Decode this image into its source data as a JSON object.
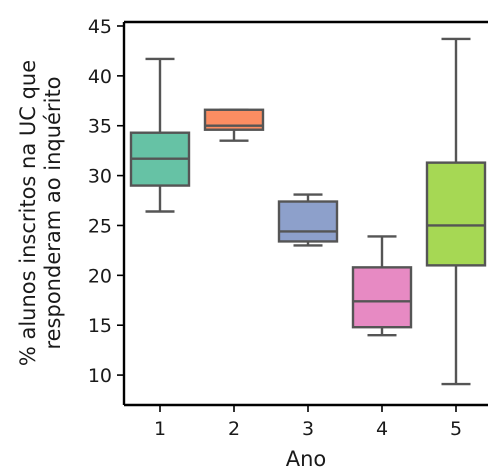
{
  "chart_data": {
    "type": "box",
    "title": "",
    "xlabel": "Ano",
    "ylabel_lines": [
      "% alunos inscritos na UC que",
      "responderam ao inquérito"
    ],
    "ylim": [
      7,
      45.4
    ],
    "yticks": [
      10,
      15,
      20,
      25,
      30,
      35,
      40,
      45
    ],
    "categories": [
      "1",
      "2",
      "3",
      "4",
      "5"
    ],
    "boxes": [
      {
        "category": "1",
        "min": 26.4,
        "q1": 29.0,
        "median": 31.7,
        "q3": 34.3,
        "max": 41.7,
        "color": "#66c2a5"
      },
      {
        "category": "2",
        "min": 33.5,
        "q1": 34.6,
        "median": 35.0,
        "q3": 36.6,
        "max": 36.6,
        "color": "#fc8d62"
      },
      {
        "category": "3",
        "min": 23.0,
        "q1": 23.4,
        "median": 24.4,
        "q3": 27.4,
        "max": 28.1,
        "color": "#8da0cb"
      },
      {
        "category": "4",
        "min": 14.0,
        "q1": 14.8,
        "median": 17.4,
        "q3": 20.8,
        "max": 23.9,
        "color": "#e78ac3"
      },
      {
        "category": "5",
        "min": 9.1,
        "q1": 21.0,
        "median": 25.0,
        "q3": 31.3,
        "max": 43.7,
        "color": "#a6d854"
      }
    ],
    "grid": false,
    "legend": "none"
  }
}
